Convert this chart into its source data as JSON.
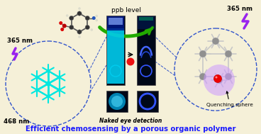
{
  "bg_color": "#f5f0d8",
  "title_text": "Efficient chemosensing by a porous organic polymer",
  "title_color": "#1a1aff",
  "title_fontsize": 7.2,
  "naked_eye_text": "Naked eye detection",
  "ppb_text": "ppb level",
  "quenching_text": "Quenching sphere",
  "nm365_left": "365 nm",
  "nm468": "468 nm",
  "nm365_right": "365 nm",
  "cyan_color": "#00e8e0",
  "blue_circle_color": "#2222bb",
  "gray_color": "#909090",
  "gray_light_color": "#c8c8c8",
  "purple_color": "#cc99ff",
  "red_dot_color": "#ee1111",
  "green_arrow_color": "#22aa00",
  "tube_dark": "#000818",
  "tube_cyan": "#00bbee",
  "tube_blue": "#2255ff",
  "dashed_blue": "#3355cc"
}
